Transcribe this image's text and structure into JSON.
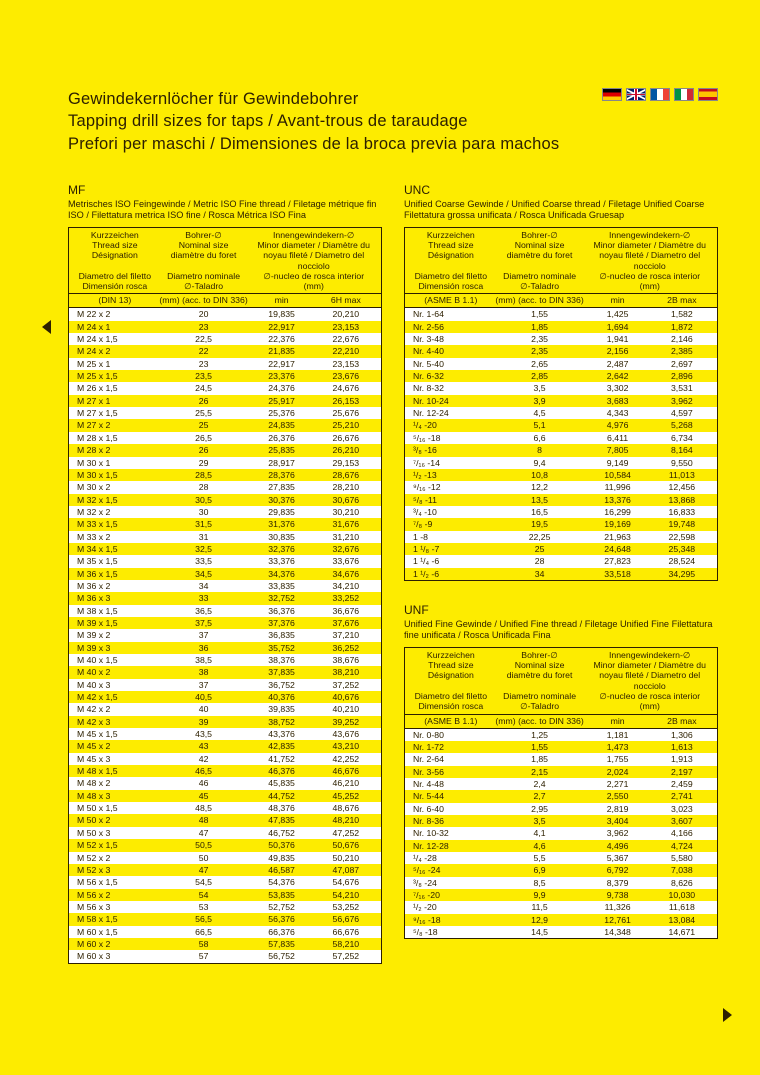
{
  "title": {
    "line1": "Gewindekernlöcher für Gewindebohrer",
    "line2": "Tapping drill sizes for taps / Avant-trous de taraudage",
    "line3": "Prefori per maschi / Dimensiones de la broca previa para machos"
  },
  "mf": {
    "heading": "MF",
    "sub": "Metrisches ISO Feingewinde / Metric ISO Fine thread / Filetage métrique fin ISO / Filettatura metrica ISO fine / Rosca Métrica ISO Fina",
    "h1": [
      "Kurzzeichen",
      "Thread size",
      "Désignation",
      "Diametro del filetto",
      "Dimensión rosca",
      "(DIN 13)"
    ],
    "h2": [
      "Bohrer-∅",
      "Nominal size",
      "diamètre du foret",
      "Diametro nominale",
      "∅-Taladro",
      "(mm) (acc. to DIN 336)"
    ],
    "h3": [
      "Innengewindekern-∅",
      "Minor diameter / Diamètre du",
      "noyau fileté / Diametro del nocciolo",
      "∅-nucleo de rosca interior",
      "(mm)"
    ],
    "s3": "min",
    "s4": "6H max",
    "rows": [
      [
        "M 22 x 2",
        "20",
        "19,835",
        "20,210"
      ],
      [
        "M 24 x 1",
        "23",
        "22,917",
        "23,153"
      ],
      [
        "M 24 x 1,5",
        "22,5",
        "22,376",
        "22,676"
      ],
      [
        "M 24 x 2",
        "22",
        "21,835",
        "22,210"
      ],
      [
        "M 25 x 1",
        "23",
        "22,917",
        "23,153"
      ],
      [
        "M 25 x 1,5",
        "23,5",
        "23,376",
        "23,676"
      ],
      [
        "M 26 x 1,5",
        "24,5",
        "24,376",
        "24,676"
      ],
      [
        "M 27 x 1",
        "26",
        "25,917",
        "26,153"
      ],
      [
        "M 27 x 1,5",
        "25,5",
        "25,376",
        "25,676"
      ],
      [
        "M 27 x 2",
        "25",
        "24,835",
        "25,210"
      ],
      [
        "M 28 x 1,5",
        "26,5",
        "26,376",
        "26,676"
      ],
      [
        "M 28 x 2",
        "26",
        "25,835",
        "26,210"
      ],
      [
        "M 30 x 1",
        "29",
        "28,917",
        "29,153"
      ],
      [
        "M 30 x 1,5",
        "28,5",
        "28,376",
        "28,676"
      ],
      [
        "M 30 x 2",
        "28",
        "27,835",
        "28,210"
      ],
      [
        "M 32 x 1,5",
        "30,5",
        "30,376",
        "30,676"
      ],
      [
        "M 32 x 2",
        "30",
        "29,835",
        "30,210"
      ],
      [
        "M 33 x 1,5",
        "31,5",
        "31,376",
        "31,676"
      ],
      [
        "M 33 x 2",
        "31",
        "30,835",
        "31,210"
      ],
      [
        "M 34 x 1,5",
        "32,5",
        "32,376",
        "32,676"
      ],
      [
        "M 35 x 1,5",
        "33,5",
        "33,376",
        "33,676"
      ],
      [
        "M 36 x 1,5",
        "34,5",
        "34,376",
        "34,676"
      ],
      [
        "M 36 x 2",
        "34",
        "33,835",
        "34,210"
      ],
      [
        "M 36 x 3",
        "33",
        "32,752",
        "33,252"
      ],
      [
        "M 38 x 1,5",
        "36,5",
        "36,376",
        "36,676"
      ],
      [
        "M 39 x 1,5",
        "37,5",
        "37,376",
        "37,676"
      ],
      [
        "M 39 x 2",
        "37",
        "36,835",
        "37,210"
      ],
      [
        "M 39 x 3",
        "36",
        "35,752",
        "36,252"
      ],
      [
        "M 40 x 1,5",
        "38,5",
        "38,376",
        "38,676"
      ],
      [
        "M 40 x 2",
        "38",
        "37,835",
        "38,210"
      ],
      [
        "M 40 x 3",
        "37",
        "36,752",
        "37,252"
      ],
      [
        "M 42 x 1,5",
        "40,5",
        "40,376",
        "40,676"
      ],
      [
        "M 42 x 2",
        "40",
        "39,835",
        "40,210"
      ],
      [
        "M 42 x 3",
        "39",
        "38,752",
        "39,252"
      ],
      [
        "M 45 x 1,5",
        "43,5",
        "43,376",
        "43,676"
      ],
      [
        "M 45 x 2",
        "43",
        "42,835",
        "43,210"
      ],
      [
        "M 45 x 3",
        "42",
        "41,752",
        "42,252"
      ],
      [
        "M 48 x 1,5",
        "46,5",
        "46,376",
        "46,676"
      ],
      [
        "M 48 x 2",
        "46",
        "45,835",
        "46,210"
      ],
      [
        "M 48 x 3",
        "45",
        "44,752",
        "45,252"
      ],
      [
        "M 50 x 1,5",
        "48,5",
        "48,376",
        "48,676"
      ],
      [
        "M 50 x 2",
        "48",
        "47,835",
        "48,210"
      ],
      [
        "M 50 x 3",
        "47",
        "46,752",
        "47,252"
      ],
      [
        "M 52 x 1,5",
        "50,5",
        "50,376",
        "50,676"
      ],
      [
        "M 52 x 2",
        "50",
        "49,835",
        "50,210"
      ],
      [
        "M 52 x 3",
        "47",
        "46,587",
        "47,087"
      ],
      [
        "M 56 x 1,5",
        "54,5",
        "54,376",
        "54,676"
      ],
      [
        "M 56 x 2",
        "54",
        "53,835",
        "54,210"
      ],
      [
        "M 56 x 3",
        "53",
        "52,752",
        "53,252"
      ],
      [
        "M 58 x 1,5",
        "56,5",
        "56,376",
        "56,676"
      ],
      [
        "M 60 x 1,5",
        "66,5",
        "66,376",
        "66,676"
      ],
      [
        "M 60 x 2",
        "58",
        "57,835",
        "58,210"
      ],
      [
        "M 60 x 3",
        "57",
        "56,752",
        "57,252"
      ]
    ]
  },
  "unc": {
    "heading": "UNC",
    "sub": "Unified Coarse Gewinde / Unified Coarse thread / Filetage Unified Coarse Filettatura grossa unificata / Rosca Unificada Gruesap",
    "h1": [
      "Kurzzeichen",
      "Thread size",
      "Désignation",
      "Diametro del filetto",
      "Dimensión rosca",
      "(ASME B 1.1)"
    ],
    "h2": [
      "Bohrer-∅",
      "Nominal size",
      "diamètre du foret",
      "Diametro nominale",
      "∅-Taladro",
      "(mm) (acc. to DIN 336)"
    ],
    "h3": [
      "Innengewindekern-∅",
      "Minor diameter / Diamètre du",
      "noyau fileté / Diametro del nocciolo",
      "∅-nucleo de rosca interior",
      "(mm)"
    ],
    "s3": "min",
    "s4": "2B max",
    "rows": [
      [
        "Nr.  1-64",
        "1,55",
        "1,425",
        "1,582"
      ],
      [
        "Nr.  2-56",
        "1,85",
        "1,694",
        "1,872"
      ],
      [
        "Nr.  3-48",
        "2,35",
        "1,941",
        "2,146"
      ],
      [
        "Nr.  4-40",
        "2,35",
        "2,156",
        "2,385"
      ],
      [
        "Nr.  5-40",
        "2,65",
        "2,487",
        "2,697"
      ],
      [
        "Nr.  6-32",
        "2,85",
        "2,642",
        "2,896"
      ],
      [
        "Nr.  8-32",
        "3,5",
        "3,302",
        "3,531"
      ],
      [
        "Nr. 10-24",
        "3,9",
        "3,683",
        "3,962"
      ],
      [
        "Nr. 12-24",
        "4,5",
        "4,343",
        "4,597"
      ],
      [
        "¹/₄ -20",
        "5,1",
        "4,976",
        "5,268"
      ],
      [
        "⁵/₁₆ -18",
        "6,6",
        "6,411",
        "6,734"
      ],
      [
        "³/₈ -16",
        "8",
        "7,805",
        "8,164"
      ],
      [
        "⁷/₁₆ -14",
        "9,4",
        "9,149",
        "9,550"
      ],
      [
        "¹/₂ -13",
        "10,8",
        "10,584",
        "11,013"
      ],
      [
        "⁹/₁₆ -12",
        "12,2",
        "11,996",
        "12,456"
      ],
      [
        "⁵/₈ -11",
        "13,5",
        "13,376",
        "13,868"
      ],
      [
        "³/₄ -10",
        "16,5",
        "16,299",
        "16,833"
      ],
      [
        "⁷/₈ -9",
        "19,5",
        "19,169",
        "19,748"
      ],
      [
        "1 -8",
        "22,25",
        "21,963",
        "22,598"
      ],
      [
        "1 ¹/₈ -7",
        "25",
        "24,648",
        "25,348"
      ],
      [
        "1 ¹/₄ -6",
        "28",
        "27,823",
        "28,524"
      ],
      [
        "1 ¹/₂ -6",
        "34",
        "33,518",
        "34,295"
      ]
    ]
  },
  "unf": {
    "heading": "UNF",
    "sub": "Unified Fine Gewinde / Unified Fine thread / Filetage Unified Fine Filettatura fine unificata / Rosca Unificada Fina",
    "h1": [
      "Kurzzeichen",
      "Thread size",
      "Désignation",
      "Diametro del filetto",
      "Dimensión rosca",
      "(ASME B 1.1)"
    ],
    "h2": [
      "Bohrer-∅",
      "Nominal size",
      "diamètre du foret",
      "Diametro nominale",
      "∅-Taladro",
      "(mm) (acc. to DIN 336)"
    ],
    "h3": [
      "Innengewindekern-∅",
      "Minor diameter / Diamètre du",
      "noyau fileté / Diametro del nocciolo",
      "∅-nucleo de rosca interior",
      "(mm)"
    ],
    "s3": "min",
    "s4": "2B max",
    "rows": [
      [
        "Nr.  0-80",
        "1,25",
        "1,181",
        "1,306"
      ],
      [
        "Nr.  1-72",
        "1,55",
        "1,473",
        "1,613"
      ],
      [
        "Nr.  2-64",
        "1,85",
        "1,755",
        "1,913"
      ],
      [
        "Nr.  3-56",
        "2,15",
        "2,024",
        "2,197"
      ],
      [
        "Nr.  4-48",
        "2,4",
        "2,271",
        "2,459"
      ],
      [
        "Nr.  5-44",
        "2,7",
        "2,550",
        "2,741"
      ],
      [
        "Nr.  6-40",
        "2,95",
        "2,819",
        "3,023"
      ],
      [
        "Nr.  8-36",
        "3,5",
        "3,404",
        "3,607"
      ],
      [
        "Nr. 10-32",
        "4,1",
        "3,962",
        "4,166"
      ],
      [
        "Nr. 12-28",
        "4,6",
        "4,496",
        "4,724"
      ],
      [
        "¹/₄ -28",
        "5,5",
        "5,367",
        "5,580"
      ],
      [
        "⁵/₁₆ -24",
        "6,9",
        "6,792",
        "7,038"
      ],
      [
        "³/₈ -24",
        "8,5",
        "8,379",
        "8,626"
      ],
      [
        "⁷/₁₆ -20",
        "9,9",
        "9,738",
        "10,030"
      ],
      [
        "¹/₂ -20",
        "11,5",
        "11,326",
        "11,618"
      ],
      [
        "⁹/₁₆ -18",
        "12,9",
        "12,761",
        "13,084"
      ],
      [
        "⁵/₈ -18",
        "14,5",
        "14,348",
        "14,671"
      ]
    ]
  }
}
